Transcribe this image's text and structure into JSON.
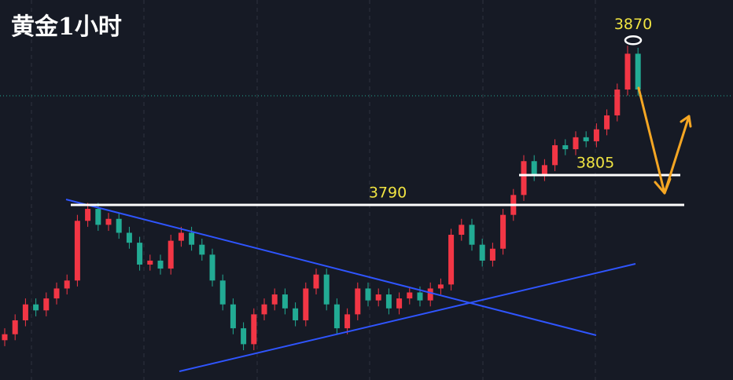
{
  "chart_data": {
    "type": "candlestick",
    "title": "黄金1小时",
    "open": [
      3722,
      3725,
      3732,
      3740,
      3737,
      3743,
      3748,
      3752,
      3782,
      3788,
      3780,
      3783,
      3776,
      3771,
      3760,
      3762,
      3758,
      3772,
      3776,
      3770,
      3765,
      3752,
      3740,
      3728,
      3720,
      3735,
      3740,
      3745,
      3738,
      3732,
      3748,
      3755,
      3740,
      3728,
      3735,
      3748,
      3742,
      3745,
      3738,
      3743,
      3746,
      3742,
      3748,
      3750,
      3775,
      3780,
      3770,
      3762,
      3768,
      3785,
      3795,
      3812,
      3805,
      3810,
      3820,
      3818,
      3824,
      3822,
      3828,
      3835,
      3848,
      3866
    ],
    "high": [
      3728,
      3735,
      3743,
      3743,
      3746,
      3751,
      3755,
      3785,
      3791,
      3791,
      3786,
      3786,
      3779,
      3774,
      3765,
      3765,
      3775,
      3779,
      3779,
      3773,
      3768,
      3755,
      3743,
      3731,
      3738,
      3743,
      3748,
      3748,
      3741,
      3751,
      3758,
      3758,
      3743,
      3738,
      3751,
      3751,
      3748,
      3748,
      3746,
      3749,
      3749,
      3751,
      3753,
      3778,
      3783,
      3783,
      3773,
      3771,
      3788,
      3798,
      3815,
      3815,
      3813,
      3823,
      3823,
      3827,
      3827,
      3831,
      3838,
      3851,
      3870,
      3869
    ],
    "low": [
      3719,
      3722,
      3729,
      3734,
      3734,
      3740,
      3745,
      3749,
      3779,
      3777,
      3777,
      3773,
      3768,
      3757,
      3757,
      3755,
      3755,
      3769,
      3767,
      3762,
      3749,
      3737,
      3725,
      3717,
      3717,
      3732,
      3737,
      3735,
      3729,
      3729,
      3745,
      3737,
      3725,
      3725,
      3732,
      3739,
      3739,
      3735,
      3735,
      3740,
      3739,
      3739,
      3745,
      3747,
      3772,
      3767,
      3759,
      3759,
      3765,
      3782,
      3792,
      3802,
      3802,
      3807,
      3815,
      3815,
      3819,
      3819,
      3825,
      3832,
      3845,
      3845
    ],
    "close": [
      3725,
      3732,
      3740,
      3737,
      3743,
      3748,
      3752,
      3782,
      3788,
      3780,
      3783,
      3776,
      3771,
      3760,
      3762,
      3758,
      3772,
      3776,
      3770,
      3765,
      3752,
      3740,
      3728,
      3720,
      3735,
      3740,
      3745,
      3738,
      3732,
      3748,
      3755,
      3740,
      3728,
      3735,
      3748,
      3742,
      3745,
      3738,
      3743,
      3746,
      3742,
      3748,
      3750,
      3775,
      3780,
      3770,
      3762,
      3768,
      3785,
      3795,
      3812,
      3805,
      3810,
      3820,
      3818,
      3824,
      3822,
      3828,
      3835,
      3848,
      3866,
      3848
    ],
    "up_color": "#f23645",
    "down_color": "#22ab94",
    "ylim": [
      3702,
      3893
    ],
    "peak": 3870,
    "levels": [
      3805,
      3790
    ]
  }
}
